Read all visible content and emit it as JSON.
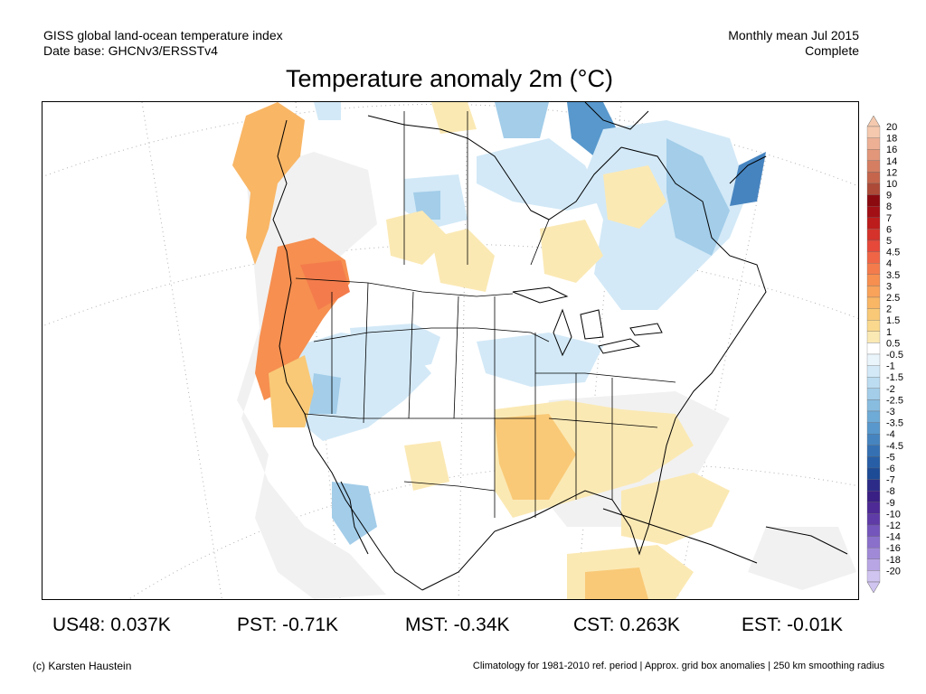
{
  "header": {
    "source_line1": "GISS global land-ocean temperature index",
    "source_line2": "Date base: GHCNv3/ERSSTv4",
    "period_line1": "Monthly mean Jul 2015",
    "period_line2": "Complete"
  },
  "title": "Temperature anomaly 2m (°C)",
  "map": {
    "region": "North America",
    "projection": "polar stereographic",
    "grid": "dotted lat/lon graticule"
  },
  "colorbar": {
    "labels": [
      "20",
      "18",
      "16",
      "14",
      "12",
      "10",
      "9",
      "8",
      "7",
      "6",
      "5",
      "4.5",
      "4",
      "3.5",
      "3",
      "2.5",
      "2",
      "1.5",
      "1",
      "0.5",
      "-0.5",
      "-1",
      "-1.5",
      "-2",
      "-2.5",
      "-3",
      "-3.5",
      "-4",
      "-4.5",
      "-5",
      "-6",
      "-7",
      "-8",
      "-9",
      "-10",
      "-12",
      "-14",
      "-16",
      "-18",
      "-20"
    ],
    "colors": [
      "#f4c9ae",
      "#edb095",
      "#e2977a",
      "#d57e62",
      "#c4654c",
      "#ad4a37",
      "#8b0a10",
      "#a20f15",
      "#bd1c1c",
      "#d4322a",
      "#e6483a",
      "#ef6546",
      "#f47c4c",
      "#f68f50",
      "#f8a25a",
      "#f9b665",
      "#f9c977",
      "#fad98e",
      "#fbe9b4",
      "#ffffff",
      "#eaf4fb",
      "#d3e9f7",
      "#bcdcf1",
      "#a3cde9",
      "#88bde0",
      "#6fabd7",
      "#5898cc",
      "#4684c0",
      "#3570b3",
      "#275ea6",
      "#1e4b96",
      "#2c2c88",
      "#3a1f84",
      "#4d2a95",
      "#5f3ba8",
      "#7455bb",
      "#8a6fcb",
      "#a08ad8",
      "#b8a6e4",
      "#d0c4f0"
    ]
  },
  "stats": {
    "us48": "US48: 0.037K",
    "pst": "PST: -0.71K",
    "mst": "MST: -0.34K",
    "cst": "CST: 0.263K",
    "est": "EST: -0.01K"
  },
  "footer": {
    "credit": "(c) Karsten Haustein",
    "note": "Climatology for 1981-2010 ref. period | Approx. grid box anomalies | 250 km smoothing radius"
  }
}
